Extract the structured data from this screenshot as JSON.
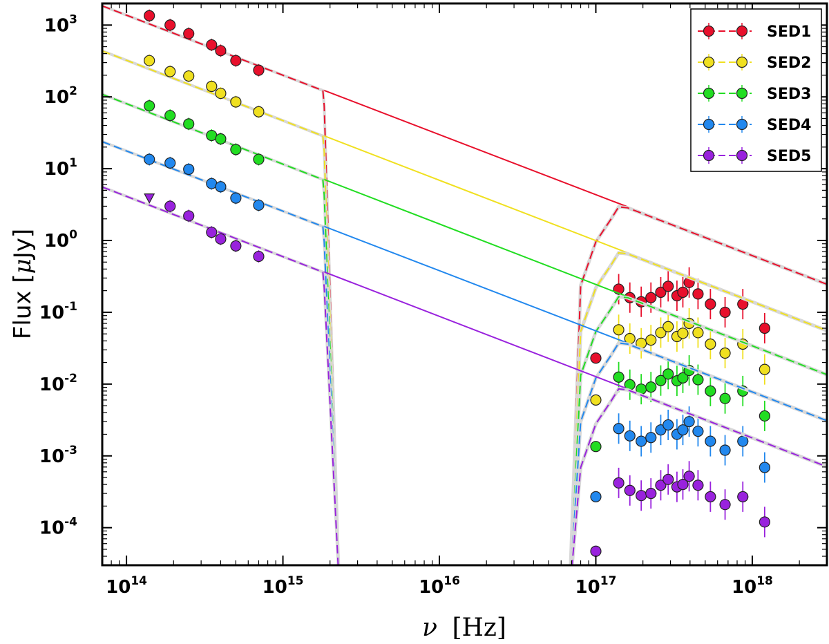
{
  "chart_data": {
    "type": "scatter",
    "xscale": "log",
    "yscale": "log",
    "xlim": [
      70000000000000.0,
      3e+18
    ],
    "ylim": [
      3e-05,
      2000
    ],
    "xlabel_var": "ν",
    "xlabel_unit": "[Hz]",
    "ylabel_text": "Flux [",
    "ylabel_mu": "μ",
    "ylabel_unit": "Jy]",
    "x_ticks": [
      {
        "base": "10",
        "exp": "14",
        "value": 100000000000000.0
      },
      {
        "base": "10",
        "exp": "15",
        "value": 1000000000000000.0
      },
      {
        "base": "10",
        "exp": "16",
        "value": 1e+16
      },
      {
        "base": "10",
        "exp": "17",
        "value": 1e+17
      },
      {
        "base": "10",
        "exp": "18",
        "value": 1e+18
      }
    ],
    "y_ticks": [
      {
        "base": "10",
        "exp": "3",
        "value": 1000
      },
      {
        "base": "10",
        "exp": "2",
        "value": 100
      },
      {
        "base": "10",
        "exp": "1",
        "value": 10
      },
      {
        "base": "10",
        "exp": "0",
        "value": 1
      },
      {
        "base": "10",
        "exp": "-1",
        "value": 0.1
      },
      {
        "base": "10",
        "exp": "-2",
        "value": 0.01
      },
      {
        "base": "10",
        "exp": "-3",
        "value": 0.001
      },
      {
        "base": "10",
        "exp": "-4",
        "value": 0.0001
      }
    ],
    "legend_position": "top-right",
    "cutoff": {
      "drop_start": 1800000000000000.0,
      "drop_end": 2300000000000000.0,
      "rise_start": 6.8e+16,
      "rise_mid": 8e+16,
      "plateau_start": 1.4e+17
    },
    "xray_nu": [
      1e+17,
      1.4e+17,
      1.65e+17,
      1.95e+17,
      2.25e+17,
      2.6e+17,
      2.9e+17,
      3.3e+17,
      3.6e+17,
      3.95e+17,
      4.5e+17,
      5.4e+17,
      6.7e+17,
      8.7e+17,
      1.2e+18
    ],
    "series": [
      {
        "name": "SED1",
        "color": "#e8102c",
        "model": {
          "norm_at_1e14": 1400,
          "slope": -0.836
        },
        "optical": [
          {
            "x": 140000000000000.0,
            "y": 1350
          },
          {
            "x": 190000000000000.0,
            "y": 1000
          },
          {
            "x": 250000000000000.0,
            "y": 760
          },
          {
            "x": 350000000000000.0,
            "y": 530
          },
          {
            "x": 400000000000000.0,
            "y": 440
          },
          {
            "x": 500000000000000.0,
            "y": 320
          },
          {
            "x": 700000000000000.0,
            "y": 235
          }
        ],
        "xray": [
          0.023,
          0.21,
          0.16,
          0.14,
          0.16,
          0.19,
          0.23,
          0.17,
          0.19,
          0.26,
          0.18,
          0.13,
          0.1,
          0.13,
          0.06
        ],
        "upper_limits": []
      },
      {
        "name": "SED2",
        "color": "#f0e020",
        "model": {
          "norm_at_1e14": 330,
          "slope": -0.84
        },
        "optical": [
          {
            "x": 140000000000000.0,
            "y": 320
          },
          {
            "x": 190000000000000.0,
            "y": 225
          },
          {
            "x": 250000000000000.0,
            "y": 195
          },
          {
            "x": 350000000000000.0,
            "y": 140
          },
          {
            "x": 400000000000000.0,
            "y": 112
          },
          {
            "x": 500000000000000.0,
            "y": 85
          },
          {
            "x": 700000000000000.0,
            "y": 62
          }
        ],
        "xray": [
          0.006,
          0.057,
          0.043,
          0.037,
          0.041,
          0.052,
          0.063,
          0.046,
          0.051,
          0.07,
          0.052,
          0.036,
          0.027,
          0.036,
          0.016
        ],
        "upper_limits": []
      },
      {
        "name": "SED3",
        "color": "#22dd22",
        "model": {
          "norm_at_1e14": 82,
          "slope": -0.842
        },
        "optical": [
          {
            "x": 140000000000000.0,
            "y": 75
          },
          {
            "x": 190000000000000.0,
            "y": 55
          },
          {
            "x": 250000000000000.0,
            "y": 42
          },
          {
            "x": 350000000000000.0,
            "y": 29
          },
          {
            "x": 400000000000000.0,
            "y": 26
          },
          {
            "x": 500000000000000.0,
            "y": 18.5
          },
          {
            "x": 700000000000000.0,
            "y": 13.5
          }
        ],
        "xray": [
          0.00135,
          0.0125,
          0.0098,
          0.0085,
          0.0091,
          0.0112,
          0.0138,
          0.0111,
          0.0122,
          0.0155,
          0.0115,
          0.008,
          0.0063,
          0.008,
          0.0036
        ],
        "upper_limits": []
      },
      {
        "name": "SED4",
        "color": "#2288ee",
        "model": {
          "norm_at_1e14": 18,
          "slope": -0.838
        },
        "optical": [
          {
            "x": 140000000000000.0,
            "y": 13.5
          },
          {
            "x": 190000000000000.0,
            "y": 12
          },
          {
            "x": 250000000000000.0,
            "y": 9.8
          },
          {
            "x": 350000000000000.0,
            "y": 6.2
          },
          {
            "x": 400000000000000.0,
            "y": 5.6
          },
          {
            "x": 500000000000000.0,
            "y": 3.9
          },
          {
            "x": 700000000000000.0,
            "y": 3.1
          }
        ],
        "xray": [
          0.00027,
          0.0024,
          0.0019,
          0.0016,
          0.0018,
          0.0023,
          0.0027,
          0.002,
          0.0023,
          0.003,
          0.0022,
          0.0016,
          0.0012,
          0.0016,
          0.00069
        ],
        "upper_limits": []
      },
      {
        "name": "SED5",
        "color": "#9922dd",
        "model": {
          "norm_at_1e14": 4.2,
          "slope": -0.84
        },
        "optical": [
          {
            "x": 190000000000000.0,
            "y": 3.0
          },
          {
            "x": 250000000000000.0,
            "y": 2.2
          },
          {
            "x": 350000000000000.0,
            "y": 1.3
          },
          {
            "x": 400000000000000.0,
            "y": 1.05
          },
          {
            "x": 500000000000000.0,
            "y": 0.84
          },
          {
            "x": 700000000000000.0,
            "y": 0.6
          }
        ],
        "xray": [
          4.7e-05,
          0.00042,
          0.00033,
          0.00028,
          0.0003,
          0.00039,
          0.00047,
          0.00037,
          0.0004,
          0.00052,
          0.00039,
          0.00027,
          0.00021,
          0.00027,
          0.00012
        ],
        "upper_limits": [
          {
            "x": 140000000000000.0,
            "y": 3.9
          }
        ]
      }
    ]
  }
}
